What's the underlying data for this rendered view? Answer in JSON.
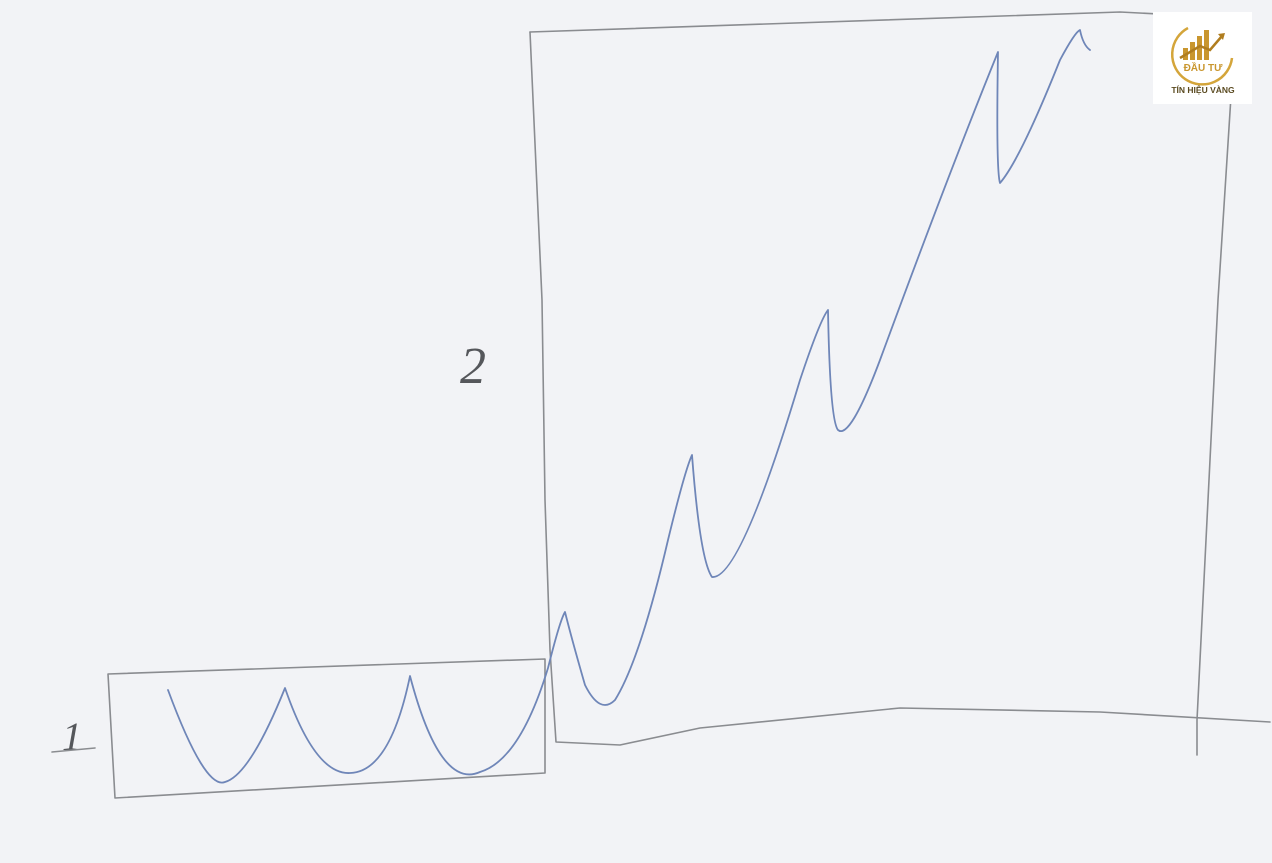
{
  "labels": {
    "box1": "1",
    "box2": "2"
  },
  "logo": {
    "top": "ĐẦU TƯ",
    "bottom": "TÍN HIỆU VÀNG"
  }
}
